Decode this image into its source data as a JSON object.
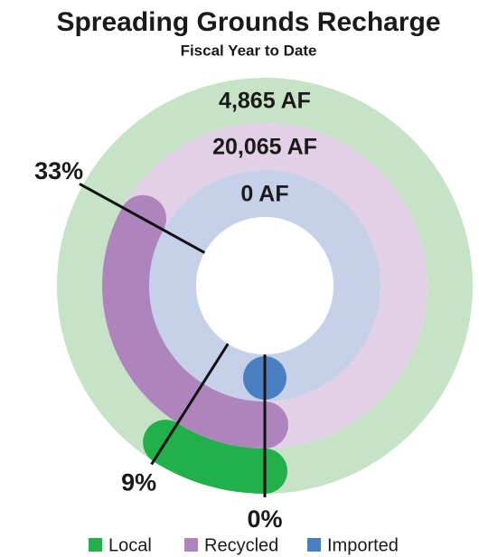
{
  "chart_data": {
    "type": "radial_bar",
    "title": "Spreading Grounds Recharge",
    "subtitle": "Fiscal Year to Date",
    "categories": [
      "Local",
      "Recycled",
      "Imported"
    ],
    "values": [
      9,
      33,
      0
    ],
    "value_labels": [
      "9%",
      "33%",
      "0%"
    ],
    "amounts": [
      4865,
      20065,
      0
    ],
    "amount_labels": [
      "4,865 AF",
      "20,065 AF",
      "0 AF"
    ],
    "colors": [
      "#22b04b",
      "#ad85bc",
      "#4a7fc1"
    ],
    "track_colors": [
      "#c6e4c5",
      "#e1d0e6",
      "#c6d0e9"
    ],
    "ylim": [
      0,
      100
    ],
    "legend": "bottom"
  }
}
